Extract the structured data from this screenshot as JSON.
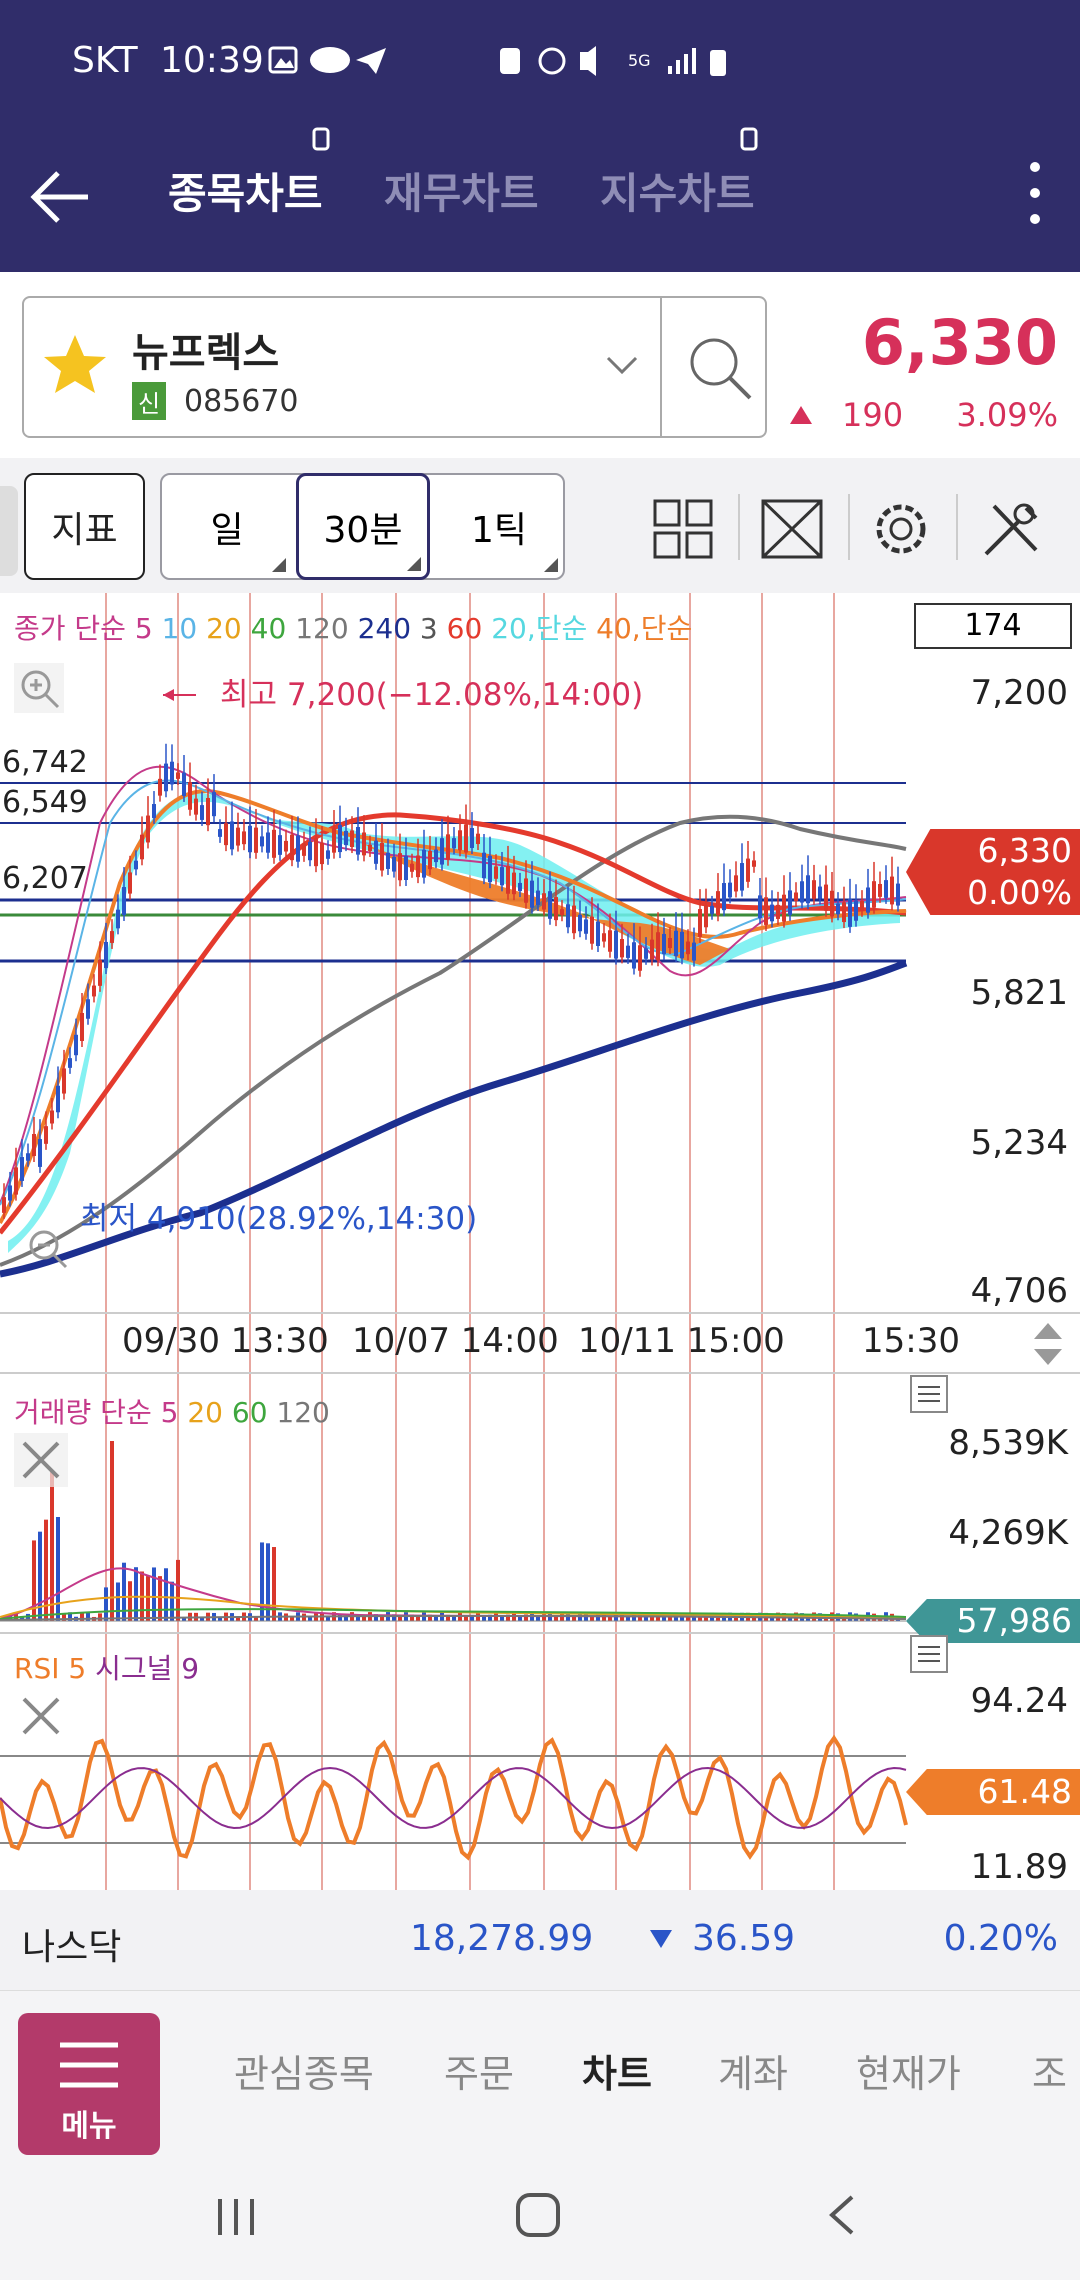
{
  "status": {
    "carrier": "SKT",
    "time": "10:39"
  },
  "header": {
    "tabs": [
      {
        "label": "종목차트",
        "active": true
      },
      {
        "label": "재무차트",
        "active": false
      },
      {
        "label": "지수차트",
        "active": false
      }
    ]
  },
  "stock": {
    "name": "뉴프렉스",
    "badge": "신",
    "code": "085670",
    "price": "6,330",
    "change": "190",
    "change_pct": "3.09%",
    "up_color": "#d6305a"
  },
  "toolbar": {
    "indicator_label": "지표",
    "period_day": "일",
    "period_min": "30분",
    "period_tick": "1틱"
  },
  "price_chart": {
    "legend": [
      {
        "text": "종가 단순 5",
        "color": "#c43a8a"
      },
      {
        "text": "10",
        "color": "#5ab4e6"
      },
      {
        "text": "20",
        "color": "#e7a21b"
      },
      {
        "text": "40",
        "color": "#3ea63e"
      },
      {
        "text": "120",
        "color": "#777777"
      },
      {
        "text": "240",
        "color": "#1c2f8f"
      },
      {
        "text": "3",
        "color": "#555555"
      },
      {
        "text": "60",
        "color": "#e43a2d"
      },
      {
        "text": "20,단순",
        "color": "#56d8e0"
      },
      {
        "text": "40,단순",
        "color": "#ee7d2a"
      }
    ],
    "count_box": "174",
    "y_ticks": [
      "7,200",
      "5,821",
      "5,234",
      "4,706"
    ],
    "left_levels": [
      "6,742",
      "6,549",
      "6,207"
    ],
    "high_annotation": "최고 7,200(−12.08%,14:00)",
    "low_annotation": "최저 4,910(28.92%,14:30)",
    "current_price": "6,330",
    "current_pct": "0.00%",
    "x_labels": [
      "09/30 13:30",
      "10/07 14:00",
      "10/11 15:00",
      "15:30"
    ]
  },
  "volume_chart": {
    "legend": [
      {
        "text": "거래량 단순 5",
        "color": "#c43a8a"
      },
      {
        "text": "20",
        "color": "#e7a21b"
      },
      {
        "text": "60",
        "color": "#3ea63e"
      },
      {
        "text": "120",
        "color": "#777777"
      }
    ],
    "y_ticks": [
      "8,539K",
      "4,269K"
    ],
    "current": "57,986"
  },
  "rsi_chart": {
    "legend": [
      {
        "text": "RSI 5",
        "color": "#ee7d2a"
      },
      {
        "text": "시그널 9",
        "color": "#8a2d8f"
      }
    ],
    "y_ticks": [
      "94.24",
      "11.89"
    ],
    "current": "61.48"
  },
  "nasdaq": {
    "name": "나스닥",
    "value": "18,278.99",
    "change": "36.59",
    "pct": "0.20%",
    "down_color": "#2a55c8"
  },
  "bottom_nav": {
    "menu_label": "메뉴",
    "items": [
      "관심종목",
      "주문",
      "차트",
      "계좌",
      "현재가",
      "조"
    ],
    "active_index": 2
  }
}
